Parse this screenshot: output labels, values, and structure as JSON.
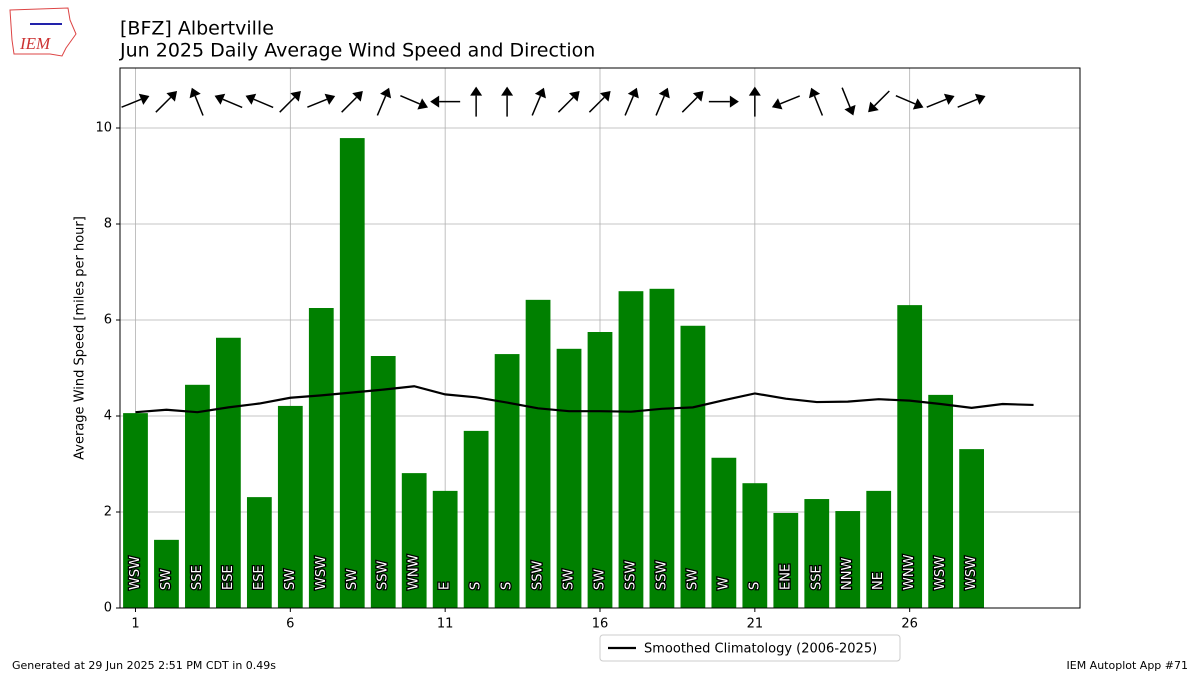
{
  "chart_data": {
    "type": "bar",
    "title": "[BFZ] Albertville",
    "subtitle": "Jun 2025 Daily Average Wind Speed and Direction",
    "ylabel": "Average Wind Speed [miles per hour]",
    "x": [
      1,
      2,
      3,
      4,
      5,
      6,
      7,
      8,
      9,
      10,
      11,
      12,
      13,
      14,
      15,
      16,
      17,
      18,
      19,
      20,
      21,
      22,
      23,
      24,
      25,
      26,
      27,
      28
    ],
    "values": [
      4.06,
      1.42,
      4.65,
      5.63,
      2.31,
      4.21,
      6.25,
      9.79,
      5.25,
      2.81,
      2.44,
      3.69,
      5.29,
      6.42,
      5.4,
      5.75,
      6.6,
      6.65,
      5.88,
      3.13,
      2.6,
      1.98,
      2.27,
      2.02,
      2.44,
      6.31,
      4.44,
      3.31
    ],
    "color": "#008000",
    "direction_labels": [
      "WSW",
      "SW",
      "SSE",
      "ESE",
      "ESE",
      "SW",
      "WSW",
      "SW",
      "SSW",
      "WNW",
      "E",
      "S",
      "S",
      "SSW",
      "SW",
      "SW",
      "SSW",
      "SSW",
      "SW",
      "W",
      "S",
      "ENE",
      "SSE",
      "NNW",
      "NE",
      "WNW",
      "WSW",
      "WSW"
    ],
    "directions": [
      248,
      225,
      158,
      113,
      113,
      225,
      248,
      225,
      203,
      293,
      90,
      180,
      180,
      203,
      225,
      225,
      203,
      203,
      225,
      270,
      180,
      68,
      158,
      338,
      45,
      293,
      248,
      248
    ],
    "line": {
      "type": "line",
      "name": "Smoothed Climatology (2006-2025)",
      "color": "#000000",
      "x": [
        1,
        2,
        3,
        4,
        5,
        6,
        7,
        8,
        9,
        10,
        11,
        12,
        13,
        14,
        15,
        16,
        17,
        18,
        19,
        20,
        21,
        22,
        23,
        24,
        25,
        26,
        27,
        28,
        29,
        30
      ],
      "values": [
        4.08,
        4.13,
        4.08,
        4.18,
        4.26,
        4.38,
        4.43,
        4.49,
        4.55,
        4.62,
        4.45,
        4.39,
        4.28,
        4.16,
        4.1,
        4.1,
        4.09,
        4.15,
        4.18,
        4.33,
        4.47,
        4.36,
        4.29,
        4.3,
        4.35,
        4.32,
        4.25,
        4.17,
        4.25,
        4.23
      ]
    },
    "xlim": [
      0.5,
      31.5
    ],
    "xticks": [
      1,
      6,
      11,
      16,
      21,
      26
    ],
    "ylim": [
      0,
      11.25
    ],
    "yticks": [
      0,
      2,
      4,
      6,
      8,
      10
    ],
    "grid": true,
    "legend": "below"
  },
  "logo_text": "IEM",
  "footer_left": "Generated at 29 Jun 2025 2:51 PM CDT in 0.49s",
  "footer_right": "IEM Autoplot App #71"
}
